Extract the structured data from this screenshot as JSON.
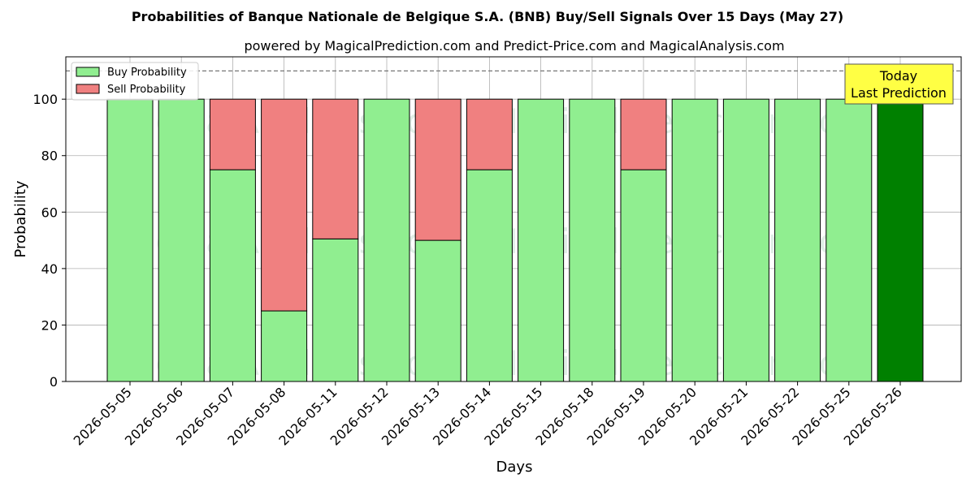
{
  "chart_data": {
    "type": "bar",
    "stacked": true,
    "title": "Probabilities of Banque Nationale de Belgique S.A. (BNB) Buy/Sell Signals Over 15 Days (May 27)",
    "subtitle": "powered by MagicalPrediction.com and Predict-Price.com and MagicalAnalysis.com",
    "xlabel": "Days",
    "ylabel": "Probability",
    "ylim": [
      0,
      115
    ],
    "yticks": [
      0,
      20,
      40,
      60,
      80,
      100
    ],
    "grid": true,
    "legend_placement": "top-left",
    "reference_line": 110,
    "categories": [
      "2026-05-05",
      "2026-05-06",
      "2026-05-07",
      "2026-05-08",
      "2026-05-11",
      "2026-05-12",
      "2026-05-13",
      "2026-05-14",
      "2026-05-15",
      "2026-05-18",
      "2026-05-19",
      "2026-05-20",
      "2026-05-21",
      "2026-05-22",
      "2026-05-25",
      "2026-05-26"
    ],
    "series": [
      {
        "name": "Buy Probability",
        "color": "#90ee90",
        "values": [
          100,
          100,
          75,
          25,
          50.5,
          100,
          50,
          75,
          100,
          100,
          75,
          100,
          100,
          100,
          100,
          100
        ]
      },
      {
        "name": "Sell Probability",
        "color": "#f08080",
        "values": [
          0,
          0,
          25,
          75,
          49.5,
          0,
          50,
          25,
          0,
          0,
          25,
          0,
          0,
          0,
          0,
          0
        ]
      }
    ],
    "highlight": {
      "index": 15,
      "color": "#008000"
    },
    "annotation": {
      "lines": [
        "Today",
        "Last Prediction"
      ],
      "background": "#ffff44"
    },
    "watermarks": [
      "MagicalAnalysis.com",
      "MagicalPrediction.com"
    ]
  }
}
